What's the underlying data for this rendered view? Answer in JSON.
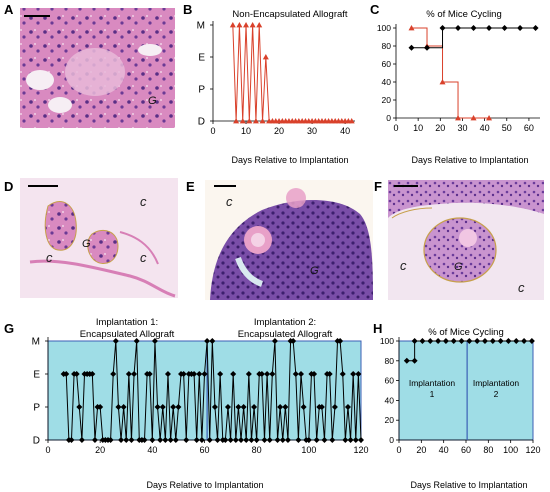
{
  "panel_letters": {
    "A": "A",
    "B": "B",
    "C": "C",
    "D": "D",
    "E": "E",
    "F": "F",
    "G": "G",
    "H": "H"
  },
  "micrograph_labels": {
    "A": [
      "G"
    ],
    "D": [
      "c",
      "c",
      "G",
      "c"
    ],
    "E": [
      "c",
      "G"
    ],
    "F": [
      "c",
      "G",
      "c"
    ]
  },
  "colors": {
    "bg_teal": "#9fdde6",
    "red_line": "#d9412b",
    "black_line": "#000000",
    "divider_blue": "#3b5fb5",
    "he_pink": "#d77fb6",
    "he_purple": "#6a3c8e"
  },
  "chart_data": [
    {
      "id": "B",
      "type": "line",
      "title": "Non-Encapsulated Allograft",
      "xlabel": "Days Relative to Implantation",
      "ylabel": "",
      "xticks": [
        0,
        10,
        20,
        30,
        40
      ],
      "xlim": [
        0,
        43
      ],
      "ylim": [
        0,
        3
      ],
      "yticklabels": [
        "D",
        "P",
        "E",
        "M"
      ],
      "grid": false,
      "series": [
        {
          "color": "#d9412b",
          "marker": "triangle",
          "x": [
            6,
            7,
            8,
            9,
            10,
            11,
            12,
            13,
            14,
            15,
            16,
            17,
            18,
            19,
            20,
            21,
            22,
            23,
            24,
            25,
            26,
            27,
            28,
            29,
            30,
            31,
            32,
            33,
            34,
            35,
            36,
            37,
            38,
            39,
            40,
            41,
            42
          ],
          "y": [
            3,
            0,
            3,
            0,
            3,
            0,
            3,
            0,
            3,
            0,
            2,
            0,
            0,
            0,
            0,
            0,
            0,
            0,
            0,
            0,
            0,
            0,
            0,
            0,
            0,
            0,
            0,
            0,
            0,
            0,
            0,
            0,
            0,
            0,
            0,
            0,
            0
          ]
        }
      ]
    },
    {
      "id": "C",
      "type": "line",
      "title": "% of Mice Cycling",
      "xlabel": "Days Relative to Implantation",
      "ylabel": "",
      "xticks": [
        0,
        10,
        20,
        30,
        40,
        50,
        60
      ],
      "yticks": [
        0,
        20,
        40,
        60,
        80,
        100
      ],
      "xlim": [
        0,
        65
      ],
      "ylim": [
        0,
        100
      ],
      "grid": false,
      "series": [
        {
          "color": "#d9412b",
          "marker": "triangle",
          "step": true,
          "x": [
            7,
            14,
            21,
            28,
            35,
            42
          ],
          "y": [
            100,
            80,
            40,
            0,
            0,
            0
          ]
        },
        {
          "color": "#000000",
          "marker": "diamond",
          "step": true,
          "x": [
            7,
            14,
            21,
            28,
            35,
            42,
            49,
            56,
            63
          ],
          "y": [
            78,
            78,
            100,
            100,
            100,
            100,
            100,
            100,
            100
          ]
        }
      ]
    },
    {
      "id": "G",
      "type": "line",
      "title": "",
      "annotations": [
        "Implantation 1:",
        "Encapsulated Allograft",
        "Implantation 2:",
        "Encapsulated Allograft"
      ],
      "xlabel": "Days Relative to Implantation",
      "ylabel": "",
      "xticks": [
        0,
        20,
        40,
        60,
        80,
        100,
        120
      ],
      "xlim": [
        0,
        120
      ],
      "ylim": [
        0,
        3
      ],
      "yticklabels": [
        "D",
        "P",
        "E",
        "M"
      ],
      "divider_x": 61,
      "grid": false,
      "series": [
        {
          "color": "#000000",
          "marker": "diamond",
          "x": [
            6,
            7,
            8,
            9,
            10,
            11,
            12,
            13,
            14,
            15,
            16,
            17,
            18,
            19,
            20,
            21,
            22,
            23,
            24,
            25,
            26,
            27,
            28,
            29,
            30,
            31,
            32,
            33,
            34,
            35,
            36,
            37,
            38,
            39,
            40,
            41,
            42,
            43,
            44,
            45,
            46,
            47,
            48,
            49,
            50,
            51,
            52,
            53,
            54,
            55,
            56,
            57,
            58,
            59,
            60,
            61,
            62,
            63,
            64,
            65,
            66,
            67,
            68,
            69,
            70,
            71,
            72,
            73,
            74,
            75,
            76,
            77,
            78,
            79,
            80,
            81,
            82,
            83,
            84,
            85,
            86,
            87,
            88,
            89,
            90,
            91,
            92,
            93,
            94,
            95,
            96,
            97,
            98,
            99,
            100,
            101,
            102,
            103,
            104,
            105,
            106,
            107,
            108,
            109,
            110,
            111,
            112,
            113,
            114,
            115,
            116,
            117,
            118,
            119,
            120
          ],
          "y": [
            2,
            2,
            0,
            0,
            2,
            2,
            1,
            0,
            2,
            2,
            2,
            2,
            0,
            1,
            1,
            0,
            0,
            0,
            0,
            2,
            3,
            1,
            0,
            1,
            0,
            2,
            0,
            2,
            3,
            0,
            0,
            0,
            2,
            2,
            0,
            3,
            1,
            0,
            1,
            0,
            2,
            0,
            1,
            0,
            1,
            2,
            2,
            0,
            2,
            2,
            2,
            0,
            2,
            0,
            2,
            3,
            0,
            3,
            1,
            0,
            2,
            0,
            0,
            1,
            0,
            2,
            0,
            1,
            0,
            1,
            0,
            2,
            0,
            1,
            0,
            2,
            2,
            0,
            2,
            0,
            2,
            3,
            0,
            1,
            0,
            1,
            0,
            3,
            3,
            2,
            0,
            2,
            1,
            0,
            0,
            2,
            2,
            0,
            1,
            1,
            0,
            2,
            2,
            0,
            1,
            3,
            3,
            2,
            0,
            1,
            0,
            2,
            0,
            2,
            0
          ]
        }
      ]
    },
    {
      "id": "H",
      "type": "line",
      "title": "% of Mice Cycling",
      "annotations": [
        "Implantation",
        "1",
        "Implantation",
        "2"
      ],
      "xlabel": "Days Relative to Implantation",
      "ylabel": "",
      "xticks": [
        0,
        20,
        40,
        60,
        80,
        100,
        120
      ],
      "yticks": [
        0,
        20,
        40,
        60,
        80,
        100
      ],
      "xlim": [
        0,
        120
      ],
      "ylim": [
        0,
        100
      ],
      "divider_x": 61,
      "grid": false,
      "series": [
        {
          "color": "#000000",
          "marker": "diamond",
          "step": true,
          "x": [
            7,
            14,
            14,
            21,
            28,
            35,
            42,
            49,
            56,
            63,
            70,
            77,
            84,
            91,
            98,
            105,
            112,
            119
          ],
          "y": [
            80,
            80,
            100,
            100,
            100,
            100,
            100,
            100,
            100,
            100,
            100,
            100,
            100,
            100,
            100,
            100,
            100,
            100
          ]
        }
      ]
    }
  ]
}
